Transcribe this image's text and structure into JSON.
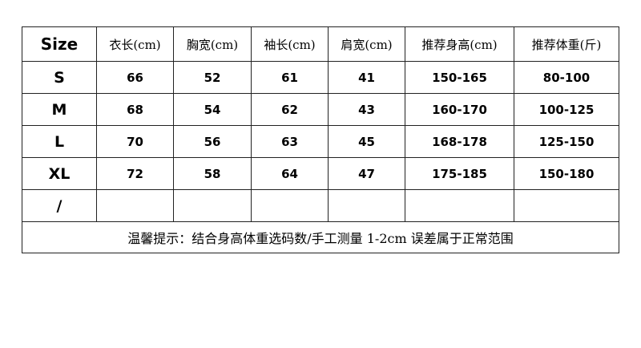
{
  "headers": [
    "Size",
    "衣长(cm)",
    "胸宽(cm)",
    "袖长(cm)",
    "肩宽(cm)",
    "推荐身高(cm)",
    "推荐体重(斤)"
  ],
  "rows": [
    [
      "S",
      "66",
      "52",
      "61",
      "41",
      "150-165",
      "80-100"
    ],
    [
      "M",
      "68",
      "54",
      "62",
      "43",
      "160-170",
      "100-125"
    ],
    [
      "L",
      "70",
      "56",
      "63",
      "45",
      "168-178",
      "125-150"
    ],
    [
      "XL",
      "72",
      "58",
      "64",
      "47",
      "175-185",
      "150-180"
    ],
    [
      "/",
      "",
      "",
      "",
      "",
      "",
      ""
    ]
  ],
  "note": "温馨提示：结合身高体重选码数/手工测量 1-2cm 误差属于正常范围"
}
